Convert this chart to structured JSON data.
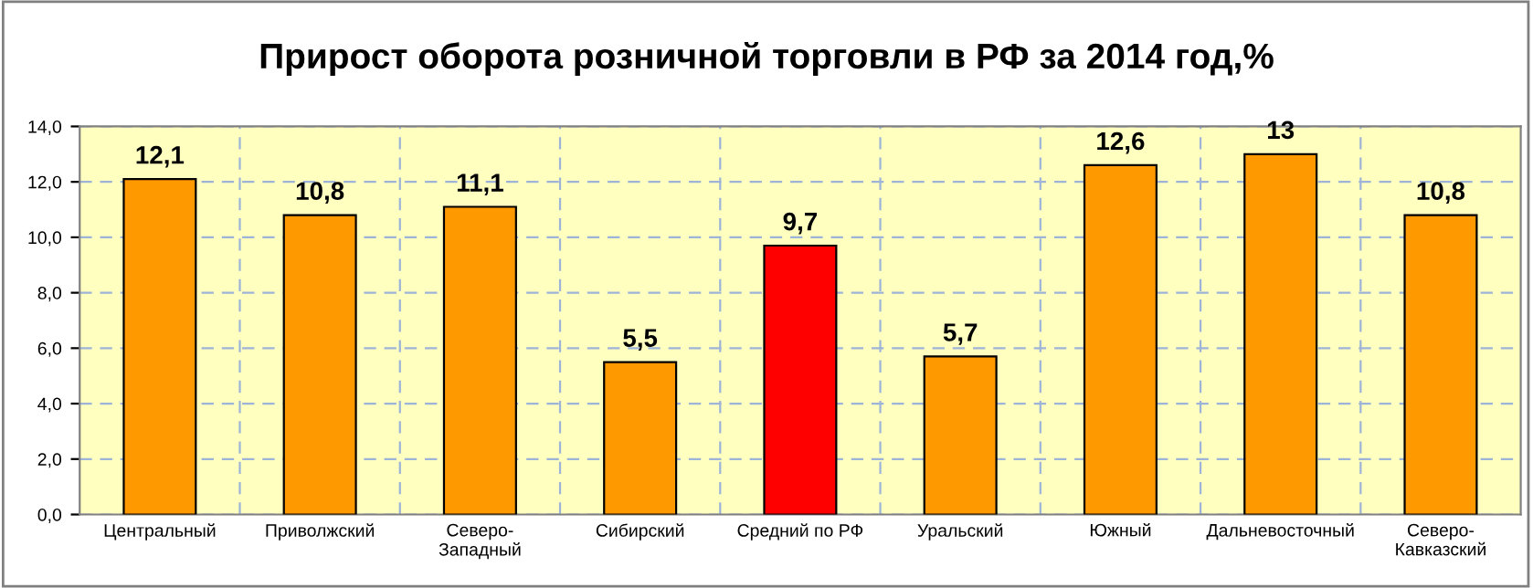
{
  "chart_data": {
    "type": "bar",
    "title": "Прирост оборота розничной торговли в РФ за 2014 год,%",
    "categories": [
      "Центральный",
      "Приволжский",
      "Северо-\nЗападный",
      "Сибирский",
      "Средний по РФ",
      "Уральский",
      "Южный",
      "Дальневосточный",
      "Северо-\nКавказский"
    ],
    "values": [
      12.1,
      10.8,
      11.1,
      5.5,
      9.7,
      5.7,
      12.6,
      13,
      10.8
    ],
    "value_labels": [
      "12,1",
      "10,8",
      "11,1",
      "5,5",
      "9,7",
      "5,7",
      "12,6",
      "13",
      "10,8"
    ],
    "colors": [
      "#ff9900",
      "#ff9900",
      "#ff9900",
      "#ff9900",
      "#ff0000",
      "#ff9900",
      "#ff9900",
      "#ff9900",
      "#ff9900"
    ],
    "ylim": [
      0,
      14
    ],
    "yticks": [
      {
        "value": 0,
        "label": "0,0"
      },
      {
        "value": 2,
        "label": "2,0"
      },
      {
        "value": 4,
        "label": "4,0"
      },
      {
        "value": 6,
        "label": "6,0"
      },
      {
        "value": 8,
        "label": "8,0"
      },
      {
        "value": 10,
        "label": "10,0"
      },
      {
        "value": 12,
        "label": "12,0"
      },
      {
        "value": 14,
        "label": "14,0"
      }
    ],
    "grid": true
  }
}
